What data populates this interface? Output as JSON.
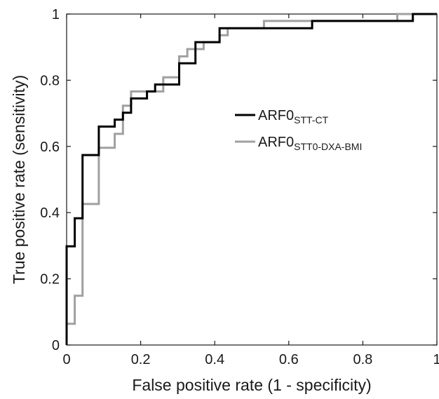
{
  "chart_data": {
    "type": "line",
    "title": "",
    "xlabel": "False positive rate (1 - specificity)",
    "ylabel": "True positive rate (sensitivity)",
    "xlim": [
      0,
      1
    ],
    "ylim": [
      0,
      1
    ],
    "x_ticks": [
      "0",
      "0.2",
      "0.4",
      "0.6",
      "0.8",
      "1"
    ],
    "y_ticks": [
      "0",
      "0.2",
      "0.4",
      "0.6",
      "0.8",
      "1"
    ],
    "grid": false,
    "legend": {
      "position": "center-right",
      "entries": [
        {
          "base": "ARF0",
          "sub": "STT-CT",
          "color": "#000000"
        },
        {
          "base": "ARF0",
          "sub": "STT0-DXA-BMI",
          "color": "#a0a0a0"
        }
      ]
    },
    "series": [
      {
        "name": "ARF0 STT-CT",
        "color": "#000000",
        "x": [
          0,
          0,
          0.011,
          0.011,
          0.022,
          0.022,
          0.043,
          0.043,
          0.087,
          0.087,
          0.13,
          0.13,
          0.152,
          0.152,
          0.174,
          0.174,
          0.217,
          0.217,
          0.239,
          0.239,
          0.304,
          0.304,
          0.348,
          0.348,
          0.413,
          0.413,
          0.533,
          0.533,
          0.663,
          0.663,
          0.893,
          0.893,
          0.935,
          0.935,
          1.0
        ],
        "y": [
          0,
          0.298,
          0.298,
          0.298,
          0.298,
          0.383,
          0.383,
          0.574,
          0.574,
          0.66,
          0.66,
          0.681,
          0.681,
          0.702,
          0.702,
          0.745,
          0.745,
          0.766,
          0.766,
          0.787,
          0.787,
          0.851,
          0.851,
          0.915,
          0.915,
          0.957,
          0.957,
          0.957,
          0.957,
          0.979,
          0.979,
          0.979,
          0.979,
          1.0,
          1.0
        ]
      },
      {
        "name": "ARF0 STT0-DXA-BMI",
        "color": "#a0a0a0",
        "x": [
          0,
          0,
          0.022,
          0.022,
          0.043,
          0.043,
          0.087,
          0.087,
          0.13,
          0.13,
          0.152,
          0.152,
          0.174,
          0.174,
          0.217,
          0.217,
          0.261,
          0.261,
          0.304,
          0.304,
          0.326,
          0.326,
          0.37,
          0.37,
          0.413,
          0.413,
          0.435,
          0.435,
          0.533,
          0.533,
          0.893,
          0.893,
          1.0
        ],
        "y": [
          0,
          0.064,
          0.064,
          0.149,
          0.149,
          0.426,
          0.426,
          0.596,
          0.596,
          0.638,
          0.638,
          0.723,
          0.723,
          0.766,
          0.766,
          0.766,
          0.766,
          0.809,
          0.809,
          0.872,
          0.872,
          0.894,
          0.894,
          0.915,
          0.915,
          0.936,
          0.936,
          0.957,
          0.957,
          0.979,
          0.979,
          1.0,
          1.0
        ]
      }
    ]
  }
}
